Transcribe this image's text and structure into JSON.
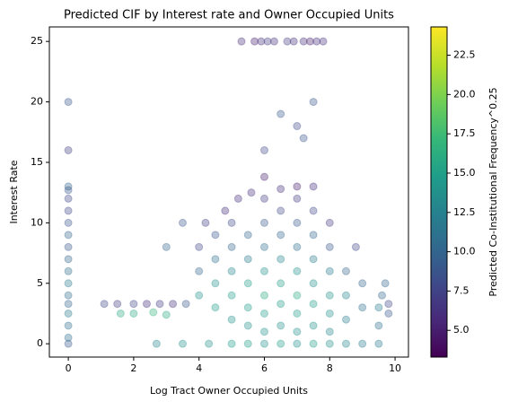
{
  "chart_data": {
    "type": "scatter",
    "title": "Predicted CIF by Interest rate and Owner Occupied Units",
    "x_label": "Log Tract Owner Occupied Units",
    "y_label": "Interest Rate",
    "colorbar_label": "Predicted Co-Institutional Frequency^0.25",
    "colormap": "viridis",
    "alpha": 0.35,
    "xlim": [
      -0.58,
      10.41
    ],
    "xticks": [
      0,
      2,
      4,
      6,
      8,
      10
    ],
    "ylim": [
      -1.1,
      26.2
    ],
    "yticks": [
      0,
      5,
      10,
      15,
      20,
      25
    ],
    "clim": [
      3.3,
      24.3
    ],
    "cticks": [
      {
        "value": 5,
        "label": "5.0"
      },
      {
        "value": 7.5,
        "label": "7.5"
      },
      {
        "value": 10,
        "label": "10.0"
      },
      {
        "value": 12.5,
        "label": "12.5"
      },
      {
        "value": 15,
        "label": "15.0"
      },
      {
        "value": 17.5,
        "label": "17.5"
      },
      {
        "value": 20,
        "label": "20.0"
      },
      {
        "value": 22.5,
        "label": "22.5"
      }
    ],
    "x": [
      0,
      0,
      0,
      0,
      0,
      0,
      0,
      0,
      0,
      0,
      0,
      0,
      0,
      0,
      0,
      0,
      0,
      0,
      5.3,
      5.7,
      5.9,
      6.1,
      6.3,
      6.7,
      6.9,
      7.2,
      7.4,
      7.6,
      7.8,
      2.7,
      3.5,
      4.3,
      5.0,
      5.5,
      6.0,
      6.5,
      7.0,
      7.5,
      8.0,
      8.5,
      9.0,
      9.5,
      1.1,
      1.5,
      2,
      2.4,
      2.8,
      3.2,
      3.6,
      2,
      2.6,
      3,
      1.6,
      4,
      4,
      4,
      4.2,
      4.5,
      4.5,
      4.5,
      4.5,
      4.8,
      5,
      5,
      5,
      5,
      5,
      5.2,
      5.5,
      5.5,
      5.5,
      5.5,
      5.5,
      5.6,
      6,
      6,
      6,
      6,
      6,
      6,
      6,
      6,
      6.5,
      6.5,
      6.5,
      6.5,
      6.5,
      6.5,
      6.5,
      7,
      7,
      7,
      7,
      7,
      7,
      7,
      7,
      7.5,
      7.5,
      7.5,
      7.5,
      7.5,
      7.5,
      7.5,
      8,
      8,
      8,
      8,
      8,
      8,
      8.5,
      8.5,
      8.5,
      8.8,
      9,
      9,
      9.5,
      9.5,
      9.6,
      9.8,
      9.8,
      9.7,
      6.5,
      7,
      7.5,
      6,
      7.2,
      3,
      3.5
    ],
    "y": [
      0,
      0.5,
      1.5,
      2.5,
      3.3,
      4,
      5,
      6,
      7,
      8,
      9,
      10,
      11,
      12,
      12.7,
      13,
      16,
      20,
      25,
      25,
      25,
      25,
      25,
      25,
      25,
      25,
      25,
      25,
      25,
      0,
      0,
      0,
      0,
      0,
      0,
      0,
      0,
      0,
      0,
      0,
      0,
      0,
      3.3,
      3.3,
      3.3,
      3.3,
      3.3,
      3.3,
      3.3,
      2.5,
      2.6,
      2.4,
      2.5,
      4,
      6,
      8,
      10,
      3,
      5,
      7,
      9,
      11,
      2,
      4,
      6,
      8,
      10,
      12,
      1.5,
      3,
      5,
      7,
      9,
      12.5,
      1,
      2.5,
      4,
      6,
      8,
      10,
      12,
      13.8,
      1.5,
      3.3,
      5,
      7,
      9,
      11,
      12.8,
      1,
      2.5,
      4,
      6,
      8,
      10,
      12,
      13,
      1.5,
      3.3,
      5,
      7,
      9,
      11,
      13,
      1,
      2.5,
      4,
      6,
      8,
      10,
      2,
      4,
      6,
      8,
      3,
      5,
      1.5,
      3,
      4,
      2.5,
      3.3,
      5,
      19,
      18,
      20,
      16,
      17,
      8,
      10
    ],
    "color_values": [
      9,
      11,
      11,
      12,
      10,
      11,
      12,
      11,
      10,
      9,
      10,
      9,
      8,
      8,
      9,
      10,
      7,
      9,
      6,
      5,
      6,
      7,
      6,
      7,
      6,
      6,
      5,
      6,
      6,
      13,
      14,
      14,
      15,
      15,
      14,
      15,
      14,
      15,
      14,
      13,
      12,
      12,
      8,
      7,
      8,
      6,
      7,
      6,
      9,
      16,
      17,
      16,
      16,
      14,
      10,
      8,
      7,
      15,
      14,
      11,
      9,
      6,
      14,
      15,
      13,
      10,
      8,
      6,
      14,
      15,
      15,
      12,
      10,
      6,
      14,
      15,
      16,
      14,
      11,
      9,
      7,
      5,
      14,
      15,
      15,
      13,
      10,
      8,
      6,
      14,
      15,
      16,
      14,
      11,
      9,
      7,
      5,
      14,
      15,
      14,
      12,
      10,
      8,
      6,
      13,
      14,
      14,
      12,
      9,
      7,
      12,
      13,
      10,
      8,
      11,
      10,
      11,
      12,
      10,
      9,
      8,
      10,
      9,
      8,
      9,
      8,
      9,
      10,
      9
    ]
  }
}
